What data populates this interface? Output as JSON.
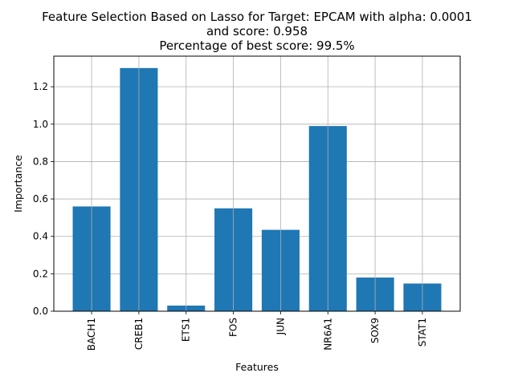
{
  "chart_data": {
    "type": "bar",
    "title_lines": [
      "Feature Selection Based on Lasso for Target: EPCAM with alpha: 0.0001",
      "and score: 0.958",
      " Percentage of best score: 99.5%"
    ],
    "xlabel": "Features",
    "ylabel": "Importance",
    "categories": [
      "BACH1",
      "CREB1",
      "ETS1",
      "FOS",
      "JUN",
      "NR6A1",
      "SOX9",
      "STAT1"
    ],
    "values": [
      0.56,
      1.3,
      0.03,
      0.55,
      0.435,
      0.99,
      0.18,
      0.148
    ],
    "ylim": [
      0,
      1.3636
    ],
    "yticks": [
      "0.0",
      "0.2",
      "0.4",
      "0.6",
      "0.8",
      "1.0",
      "1.2"
    ],
    "ytick_values": [
      0.0,
      0.2,
      0.4,
      0.6,
      0.8,
      1.0,
      1.2
    ],
    "grid": true,
    "bar_color": "#1f77b4",
    "grid_color": "#b0b0b0"
  }
}
